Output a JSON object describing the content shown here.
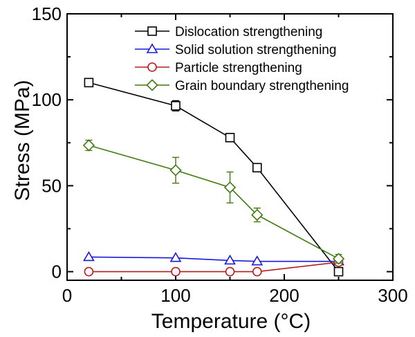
{
  "chart_data": {
    "type": "line",
    "xlabel": "Temperature (°C)",
    "ylabel": "Stress (MPa)",
    "xlim": [
      0,
      300
    ],
    "ylim": [
      -5,
      150
    ],
    "xticks": [
      0,
      100,
      200,
      300
    ],
    "yticks": [
      0,
      50,
      100,
      150
    ],
    "x_tick_labels": [
      "0",
      "100",
      "200",
      "300"
    ],
    "y_tick_labels": [
      "0",
      "50",
      "100",
      "150"
    ],
    "grid": false,
    "legend_position": "top-right",
    "series": [
      {
        "name": "Dislocation strengthening",
        "color": "#000000",
        "marker": "square",
        "x": [
          20,
          100,
          150,
          175,
          250
        ],
        "y": [
          110,
          96.5,
          78,
          60.5,
          0
        ],
        "err": [
          1.5,
          3,
          1.5,
          2,
          1
        ]
      },
      {
        "name": "Solid solution strengthening",
        "color": "#1a1adb",
        "marker": "triangle",
        "x": [
          20,
          100,
          150,
          175,
          250
        ],
        "y": [
          8.5,
          8,
          6.5,
          6,
          6
        ],
        "err": [
          0,
          0,
          0,
          0,
          0
        ]
      },
      {
        "name": "Particle strengthening",
        "color": "#b51d1d",
        "marker": "circle",
        "x": [
          20,
          100,
          150,
          175,
          250
        ],
        "y": [
          0,
          0,
          0,
          0,
          5.5
        ],
        "err": [
          0,
          0,
          0,
          0,
          0
        ]
      },
      {
        "name": "Grain boundary strengthening",
        "color": "#3f7a0e",
        "marker": "diamond",
        "x": [
          20,
          100,
          150,
          175,
          250
        ],
        "y": [
          73.5,
          59,
          49,
          33,
          7.5
        ],
        "err": [
          3,
          7.5,
          9,
          4,
          2.5
        ]
      }
    ]
  }
}
